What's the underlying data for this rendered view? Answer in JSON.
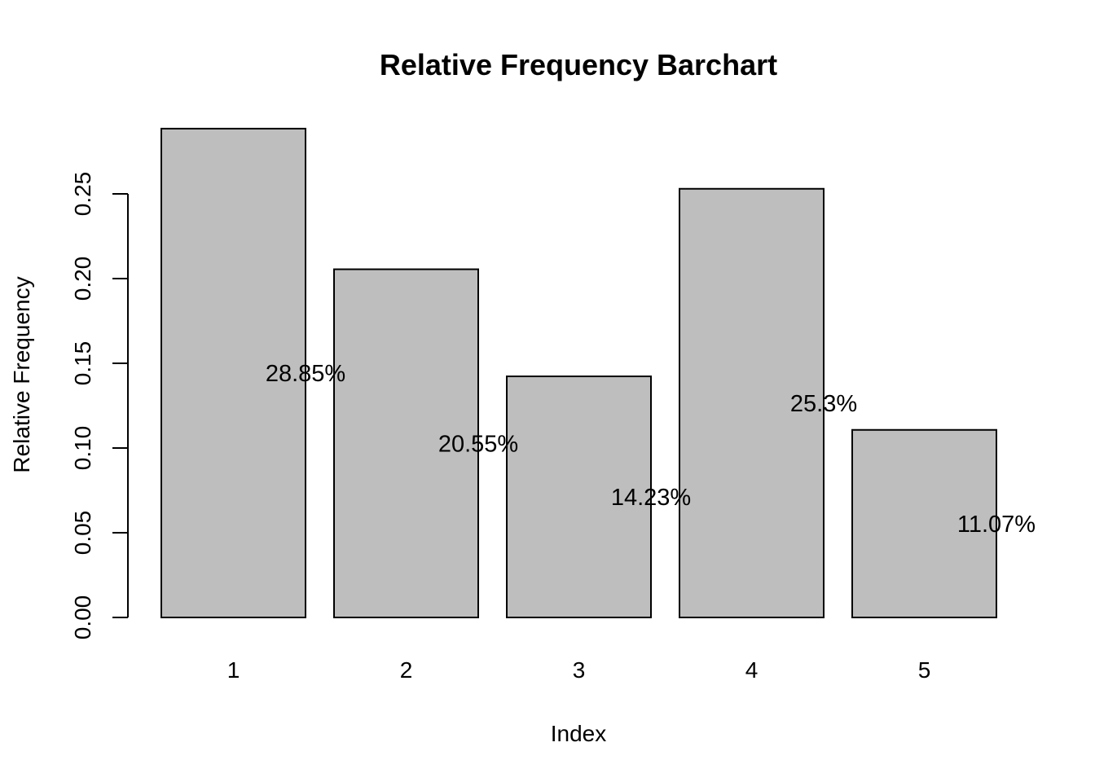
{
  "chart_data": {
    "type": "bar",
    "title": "Relative Frequency Barchart",
    "xlabel": "Index",
    "ylabel": "Relative Frequency",
    "categories": [
      "1",
      "2",
      "3",
      "4",
      "5"
    ],
    "values": [
      0.2885,
      0.2055,
      0.1423,
      0.253,
      0.1107
    ],
    "data_labels": [
      "28.85%",
      "20.55%",
      "14.23%",
      "25.3%",
      "11.07%"
    ],
    "y_ticks": [
      "0.00",
      "0.05",
      "0.10",
      "0.15",
      "0.20",
      "0.25"
    ],
    "ylim": [
      0,
      0.2885
    ],
    "grid": false,
    "legend": "none",
    "bar_color": "#bebebe",
    "border_color": "#000000"
  }
}
